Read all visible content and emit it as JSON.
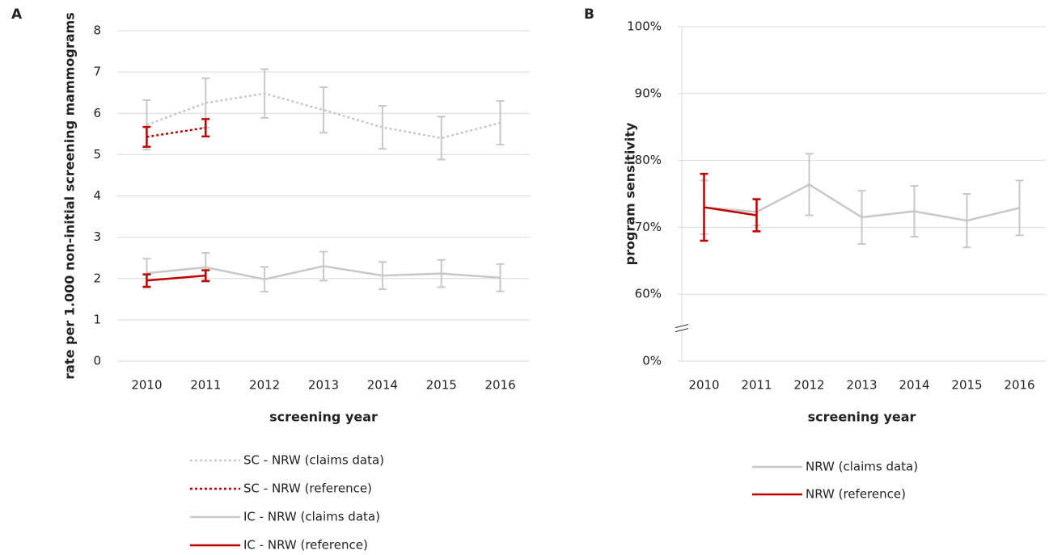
{
  "chart_data": [
    {
      "type": "line",
      "panel_label": "A",
      "y_label": "rate per 1.000 non-initial screening mammograms",
      "x_label": "screening year",
      "categories": [
        "2010",
        "2011",
        "2012",
        "2013",
        "2014",
        "2015",
        "2016"
      ],
      "ylim": [
        0,
        8
      ],
      "yticks": [
        0,
        1,
        2,
        3,
        4,
        5,
        6,
        7,
        8
      ],
      "grid": true,
      "series": [
        {
          "name": "SC - NRW (claims data)",
          "color": "#c8c8c8",
          "style": "dotted",
          "values": [
            5.72,
            6.25,
            6.48,
            6.08,
            5.66,
            5.4,
            5.77
          ],
          "errors": [
            0.6,
            0.6,
            0.59,
            0.55,
            0.52,
            0.52,
            0.53
          ]
        },
        {
          "name": "SC - NRW (reference)",
          "color": "#c00000",
          "style": "dotted",
          "values": [
            5.43,
            5.65,
            null,
            null,
            null,
            null,
            null
          ],
          "errors": [
            0.24,
            0.21,
            null,
            null,
            null,
            null,
            null
          ]
        },
        {
          "name": "IC - NRW (claims data)",
          "color": "#c8c8c8",
          "style": "solid",
          "values": [
            2.13,
            2.27,
            1.98,
            2.3,
            2.07,
            2.12,
            2.02
          ],
          "errors": [
            0.35,
            0.35,
            0.3,
            0.35,
            0.33,
            0.33,
            0.33
          ]
        },
        {
          "name": "IC - NRW (reference)",
          "color": "#c00000",
          "style": "solid",
          "values": [
            1.95,
            2.07,
            null,
            null,
            null,
            null,
            null
          ],
          "errors": [
            0.15,
            0.13,
            null,
            null,
            null,
            null,
            null
          ]
        }
      ]
    },
    {
      "type": "line",
      "panel_label": "B",
      "y_label": "program sensitivity",
      "x_label": "screening year",
      "categories": [
        "2010",
        "2011",
        "2012",
        "2013",
        "2014",
        "2015",
        "2016"
      ],
      "ylim": [
        0,
        100
      ],
      "y_break": true,
      "yticks": [
        {
          "value": 0,
          "label": "0%"
        },
        {
          "value": 60,
          "label": "60%"
        },
        {
          "value": 70,
          "label": "70%"
        },
        {
          "value": 80,
          "label": "80%"
        },
        {
          "value": 90,
          "label": "90%"
        },
        {
          "value": 100,
          "label": "100%"
        }
      ],
      "grid": true,
      "series": [
        {
          "name": "NRW (claims data)",
          "color": "#c8c8c8",
          "style": "solid",
          "values": [
            73.0,
            72.3,
            76.4,
            71.5,
            72.4,
            71.0,
            72.9
          ],
          "errors": [
            4,
            2,
            4.6,
            4,
            3.8,
            4,
            4.1
          ]
        },
        {
          "name": "NRW (reference)",
          "color": "#c00000",
          "style": "solid",
          "values": [
            73.0,
            71.8,
            null,
            null,
            null,
            null,
            null
          ],
          "errors": [
            5,
            2.4,
            null,
            null,
            null,
            null,
            null
          ]
        }
      ]
    }
  ]
}
